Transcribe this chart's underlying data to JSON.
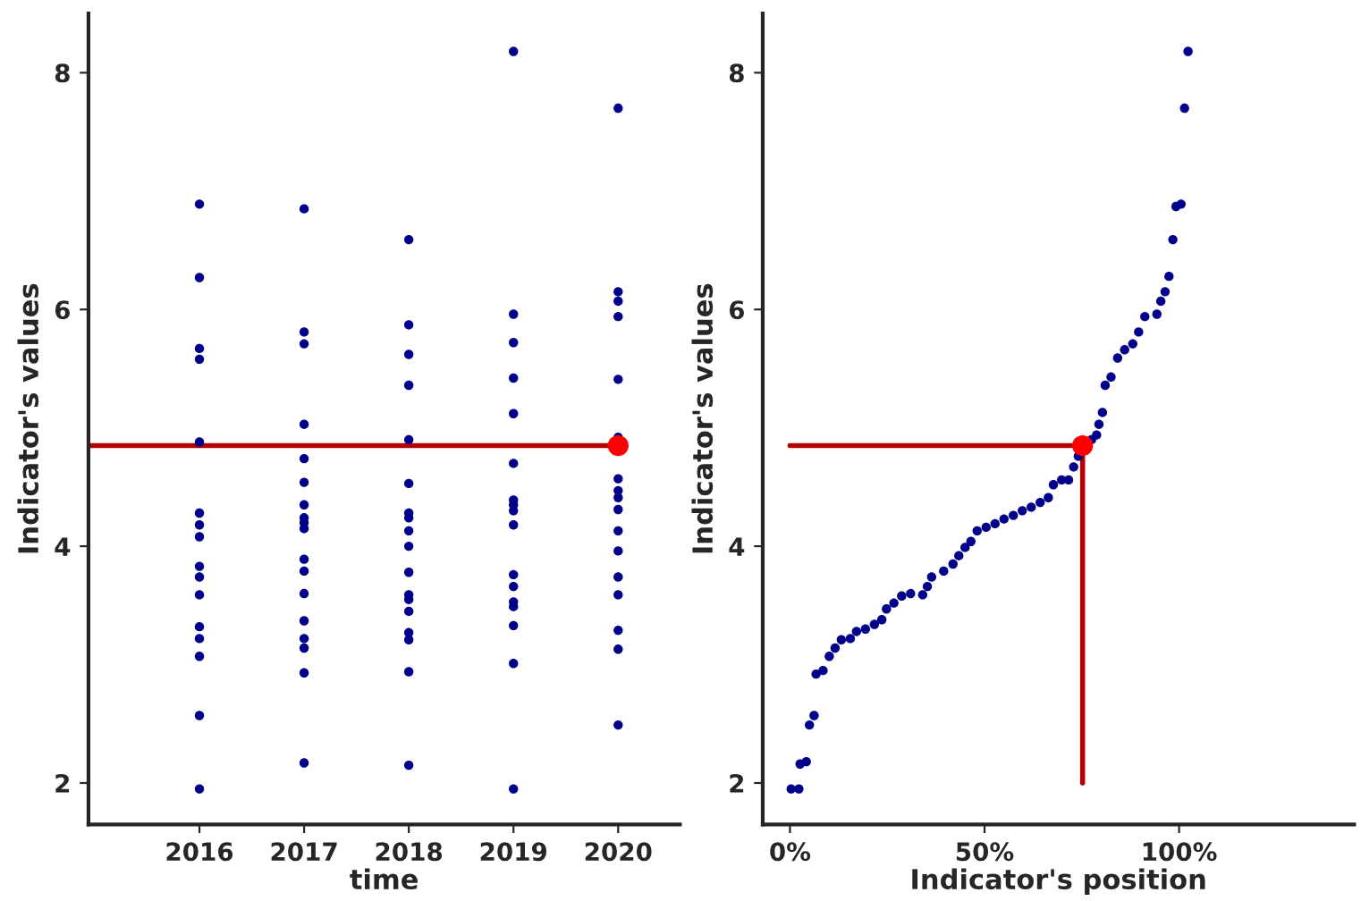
{
  "chart_data": [
    {
      "type": "scatter",
      "xlabel": "time",
      "ylabel": "Indicator's values",
      "xlim": [
        2014.94,
        2020.59
      ],
      "xticks": [
        2016,
        2017,
        2018,
        2019,
        2020
      ],
      "ylim": [
        1.65,
        8.5
      ],
      "yticks": [
        2,
        4,
        6,
        8
      ],
      "marker": "circle",
      "series": [
        {
          "color": "#00008b",
          "x": [
            2016,
            2016,
            2016,
            2016,
            2016,
            2016,
            2016,
            2016,
            2016,
            2016,
            2016,
            2016,
            2016,
            2016,
            2016,
            2016,
            2017,
            2017,
            2017,
            2017,
            2017,
            2017,
            2017,
            2017,
            2017,
            2017,
            2017,
            2017,
            2017,
            2017,
            2017,
            2017,
            2017,
            2017,
            2018,
            2018,
            2018,
            2018,
            2018,
            2018,
            2018,
            2018,
            2018,
            2018,
            2018,
            2018,
            2018,
            2018,
            2018,
            2018,
            2018,
            2018,
            2019,
            2019,
            2019,
            2019,
            2019,
            2019,
            2019,
            2019,
            2019,
            2019,
            2019,
            2019,
            2019,
            2019,
            2019,
            2019,
            2019,
            2020,
            2020,
            2020,
            2020,
            2020,
            2020,
            2020,
            2020,
            2020,
            2020,
            2020,
            2020,
            2020,
            2020,
            2020,
            2020,
            2020
          ],
          "values": [
            6.89,
            6.27,
            5.67,
            5.58,
            4.88,
            4.28,
            4.18,
            4.08,
            3.83,
            3.74,
            3.59,
            3.32,
            3.22,
            3.07,
            2.57,
            1.95,
            6.85,
            5.81,
            5.71,
            5.03,
            4.74,
            4.54,
            4.35,
            4.24,
            4.2,
            4.15,
            3.89,
            3.79,
            3.6,
            3.37,
            3.22,
            3.14,
            2.93,
            2.17,
            6.59,
            5.87,
            5.62,
            5.36,
            4.9,
            4.53,
            4.28,
            4.24,
            4.13,
            4.0,
            3.78,
            3.59,
            3.55,
            3.45,
            3.27,
            3.21,
            2.94,
            2.15,
            8.18,
            5.96,
            5.72,
            5.42,
            5.12,
            4.7,
            4.39,
            4.35,
            4.3,
            4.18,
            3.76,
            3.66,
            3.53,
            3.49,
            3.33,
            3.01,
            1.95,
            7.7,
            6.15,
            6.07,
            5.94,
            5.41,
            4.92,
            4.57,
            4.47,
            4.41,
            4.31,
            4.13,
            3.96,
            3.74,
            3.59,
            3.29,
            3.13,
            2.49
          ]
        },
        {
          "type": "line",
          "color": "#b30000",
          "x": [
            2014.94,
            2020
          ],
          "values": [
            4.85,
            4.85
          ],
          "marker": "none",
          "line_style": "solid"
        },
        {
          "color": "#ff0000",
          "x": [
            2020
          ],
          "values": [
            4.85
          ]
        }
      ]
    },
    {
      "type": "scatter",
      "xlabel": "Indicator's position",
      "ylabel": "Indicator's values",
      "xlim": [
        -7,
        145
      ],
      "ylim": [
        1.65,
        8.5
      ],
      "yticks": [
        2,
        4,
        6,
        8
      ],
      "xticks": [
        {
          "value": 0,
          "label": "0%"
        },
        {
          "value": 50,
          "label": "50%"
        },
        {
          "value": 100,
          "label": "100%"
        }
      ],
      "marker": "circle",
      "series": [
        {
          "color": "#00008b",
          "x": [
            0.3,
            2.3,
            2.6,
            4.2,
            5.0,
            6.2,
            6.7,
            8.5,
            10.1,
            11.6,
            13.2,
            15.5,
            17.1,
            19.4,
            21.7,
            23.6,
            24.8,
            26.7,
            28.7,
            31.0,
            34.1,
            35.3,
            36.4,
            39.5,
            41.9,
            43.4,
            45.0,
            46.5,
            48.1,
            50.4,
            52.7,
            55.0,
            57.4,
            59.7,
            62.0,
            64.3,
            66.4,
            67.7,
            69.8,
            71.6,
            72.9,
            74.1,
            77.5,
            78.8,
            79.4,
            80.3,
            81.0,
            82.5,
            84.2,
            86.0,
            88.1,
            89.6,
            91.2,
            94.3,
            95.3,
            96.4,
            97.4,
            98.4,
            99.2,
            100.5,
            101.4,
            102.3
          ],
          "values": [
            1.95,
            1.95,
            2.16,
            2.18,
            2.49,
            2.57,
            2.92,
            2.95,
            3.07,
            3.14,
            3.21,
            3.22,
            3.28,
            3.3,
            3.34,
            3.38,
            3.47,
            3.52,
            3.58,
            3.6,
            3.59,
            3.66,
            3.74,
            3.79,
            3.85,
            3.92,
            3.99,
            4.04,
            4.13,
            4.16,
            4.19,
            4.23,
            4.26,
            4.3,
            4.33,
            4.37,
            4.41,
            4.52,
            4.56,
            4.56,
            4.67,
            4.76,
            4.9,
            4.94,
            5.03,
            5.13,
            5.36,
            5.43,
            5.59,
            5.66,
            5.71,
            5.81,
            5.94,
            5.96,
            6.07,
            6.15,
            6.28,
            6.59,
            6.87,
            6.89,
            7.7,
            8.18
          ]
        },
        {
          "type": "line",
          "color": "#b30000",
          "x": [
            0,
            75.2,
            75.2
          ],
          "values": [
            4.85,
            4.85,
            2
          ],
          "marker": "none",
          "line_style": "solid"
        },
        {
          "color": "#ff0000",
          "x": [
            75.2
          ],
          "values": [
            4.85
          ]
        }
      ]
    }
  ]
}
